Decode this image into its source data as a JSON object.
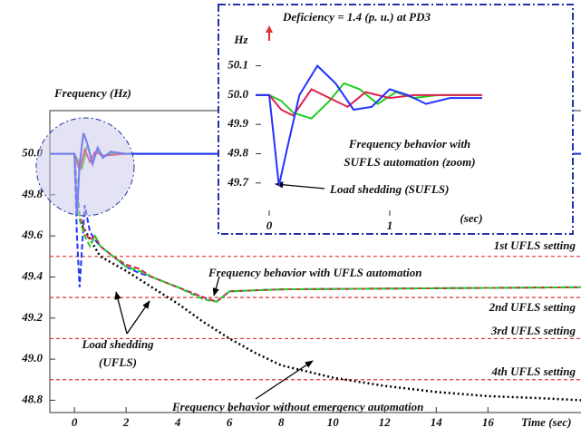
{
  "chart_data": [
    {
      "type": "line",
      "title": "Frequency (Hz)",
      "x_label": "Time (sec)",
      "xlim": [
        -0.95,
        19.6
      ],
      "ylim": [
        48.74,
        50.21
      ],
      "xticks": [
        0,
        2,
        4,
        6,
        8,
        10,
        12,
        14,
        16
      ],
      "yticks": [
        {
          "value": 50,
          "label": "50.0"
        },
        49.8,
        49.6,
        49.4,
        49.2,
        {
          "value": 49,
          "label": "49.0"
        },
        48.8
      ],
      "reference_lines": [
        {
          "value": 49.5,
          "label": "1st UFLS setting",
          "color": "#e03030"
        },
        {
          "value": 49.3,
          "label": "2nd UFLS setting",
          "color": "#e03030"
        },
        {
          "value": 49.1,
          "label": "3rd UFLS setting",
          "color": "#e03030"
        },
        {
          "value": 48.9,
          "label": "4th UFLS setting",
          "color": "#e03030"
        }
      ],
      "series": [
        {
          "color": "#000000",
          "style": "dotted",
          "x": [
            0.3,
            1,
            2,
            3,
            4,
            5,
            6,
            7,
            8,
            10,
            12,
            14,
            16,
            18,
            19.6
          ],
          "values": [
            49.65,
            49.5,
            49.43,
            49.35,
            49.27,
            49.18,
            49.1,
            49.03,
            48.97,
            48.91,
            48.87,
            48.84,
            48.82,
            48.81,
            48.8
          ]
        },
        {
          "color": "#2233ff",
          "style": "dashed",
          "x": [
            0,
            0.1,
            0.2,
            0.3,
            0.4,
            0.6,
            0.8,
            1,
            1.5,
            2,
            2.5,
            3,
            4,
            5,
            5.5,
            6,
            8,
            19.6
          ],
          "values": [
            50,
            49.6,
            49.35,
            49.55,
            49.75,
            49.62,
            49.58,
            49.55,
            49.5,
            49.45,
            49.42,
            49.4,
            49.35,
            49.3,
            49.28,
            49.33,
            49.34,
            49.35
          ]
        },
        {
          "color": "#e02050",
          "style": "dashed",
          "x": [
            0,
            0.2,
            0.4,
            0.6,
            0.8,
            1,
            1.5,
            2,
            2.5,
            3,
            4,
            5,
            5.5,
            6,
            8,
            19.6
          ],
          "values": [
            50,
            49.7,
            49.62,
            49.58,
            49.6,
            49.55,
            49.5,
            49.46,
            49.44,
            49.4,
            49.35,
            49.3,
            49.28,
            49.33,
            49.34,
            49.35
          ]
        },
        {
          "color": "#22cc22",
          "style": "dashed",
          "x": [
            0,
            0.2,
            0.4,
            0.6,
            0.8,
            1,
            1.5,
            2,
            2.5,
            3,
            4,
            5,
            5.5,
            6,
            8,
            19.6
          ],
          "values": [
            50,
            49.68,
            49.6,
            49.55,
            49.6,
            49.55,
            49.5,
            49.45,
            49.43,
            49.4,
            49.35,
            49.29,
            49.28,
            49.33,
            49.34,
            49.35
          ]
        },
        {
          "color": "#22cc22",
          "style": "solid",
          "x": [
            -0.95,
            0,
            0.3,
            0.5,
            0.7,
            0.9,
            1.1,
            1.4,
            2,
            19.6
          ],
          "values": [
            50,
            50,
            49.93,
            50.04,
            49.96,
            50.02,
            49.99,
            50,
            50,
            50
          ]
        },
        {
          "color": "#e02050",
          "style": "solid",
          "x": [
            0,
            0.2,
            0.4,
            0.6,
            0.8,
            1.1,
            2
          ],
          "values": [
            50,
            49.92,
            50.02,
            49.96,
            50.01,
            49.99,
            50
          ]
        },
        {
          "color": "#2233ff",
          "style": "solid",
          "x": [
            -0.95,
            0,
            0.1,
            0.2,
            0.35,
            0.5,
            0.7,
            0.9,
            1.1,
            1.4,
            2,
            19.6
          ],
          "values": [
            50,
            50,
            49.7,
            49.95,
            50.1,
            50.05,
            49.95,
            50.03,
            49.98,
            50.01,
            50,
            50
          ]
        }
      ],
      "annotations": [
        [
          "Frequency behavior with UFLS automation"
        ],
        [
          "Load shedding",
          "(UFLS)"
        ],
        [
          "Frequency behavior without emergency automation"
        ]
      ]
    },
    {
      "type": "line",
      "title": "Deficiency = 1.4 (p. u.) at PD3",
      "y_label": "Hz",
      "x_label": "(sec)",
      "xlim": [
        -0.113,
        1.767
      ],
      "ylim": [
        49.588,
        50.176
      ],
      "xticks": [
        0,
        1
      ],
      "yticks": [
        {
          "value": 50.1,
          "label": "50.1"
        },
        {
          "value": 50,
          "label": "50.0"
        },
        49.9,
        49.8,
        49.7
      ],
      "series": [
        {
          "color": "#22cc22",
          "style": "solid",
          "x": [
            -0.113,
            0,
            0.1,
            0.2,
            0.35,
            0.5,
            0.62,
            0.75,
            0.9,
            1.05,
            1.2,
            1.4,
            1.767
          ],
          "values": [
            50,
            50,
            49.98,
            49.94,
            49.92,
            49.98,
            50.04,
            50.02,
            49.97,
            50.01,
            49.99,
            50.0,
            50
          ]
        },
        {
          "color": "#e02050",
          "style": "solid",
          "x": [
            -0.113,
            0,
            0.1,
            0.2,
            0.35,
            0.5,
            0.65,
            0.8,
            1.0,
            1.2,
            1.767
          ],
          "values": [
            50,
            50,
            49.95,
            49.93,
            50.02,
            49.99,
            49.96,
            50.01,
            49.99,
            50.0,
            50
          ]
        },
        {
          "color": "#2233ff",
          "style": "solid",
          "x": [
            -0.113,
            0,
            0.04,
            0.08,
            0.15,
            0.25,
            0.4,
            0.55,
            0.7,
            0.85,
            1.0,
            1.15,
            1.3,
            1.5,
            1.767
          ],
          "values": [
            50,
            50,
            49.85,
            49.69,
            49.82,
            50.0,
            50.1,
            50.04,
            49.95,
            49.96,
            50.02,
            50.0,
            49.97,
            49.99,
            49.99
          ]
        }
      ],
      "annotations": [
        [
          "Frequency behavior with",
          "SUFLS automation (zoom)"
        ],
        [
          "Load shedding (SUFLS)"
        ]
      ]
    }
  ]
}
